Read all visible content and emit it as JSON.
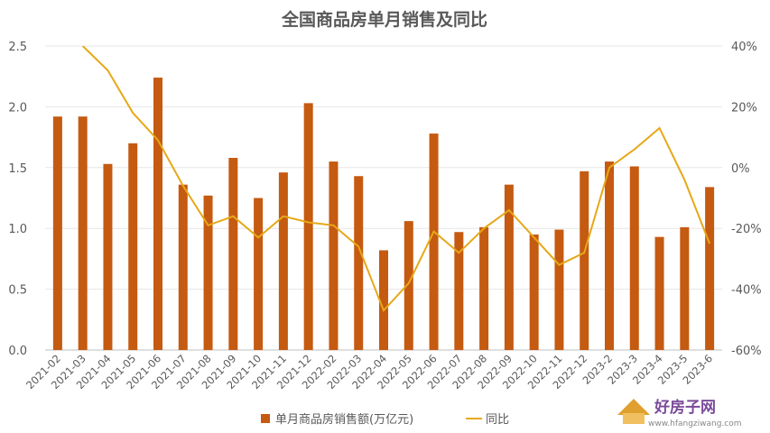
{
  "chart_data": {
    "type": "bar+line",
    "title": "全国商品房单月销售及同比",
    "categories": [
      "2021-02",
      "2021-03",
      "2021-04",
      "2021-05",
      "2021-06",
      "2021-07",
      "2021-08",
      "2021-09",
      "2021-10",
      "2021-11",
      "2021-12",
      "2022-02",
      "2022-03",
      "2022-04",
      "2022-05",
      "2022-06",
      "2022-07",
      "2022-08",
      "2022-09",
      "2022-10",
      "2022-11",
      "2022-12",
      "2023-2",
      "2023-3",
      "2023-4",
      "2023-5",
      "2023-6"
    ],
    "series": [
      {
        "name": "单月商品房销售额(万亿元)",
        "type": "bar",
        "axis": "left",
        "color": "#c55a11",
        "values": [
          1.92,
          1.92,
          1.53,
          1.7,
          2.24,
          1.36,
          1.27,
          1.58,
          1.25,
          1.46,
          2.03,
          1.55,
          1.43,
          0.82,
          1.06,
          1.78,
          0.97,
          1.01,
          1.36,
          0.95,
          0.99,
          1.47,
          1.55,
          1.51,
          0.93,
          1.01,
          1.34
        ]
      },
      {
        "name": "同比",
        "type": "line",
        "axis": "right",
        "color": "#e6a817",
        "values": [
          null,
          40,
          32,
          18,
          9,
          -6,
          -19,
          -16,
          -23,
          -16,
          -18,
          -19,
          -26,
          -47,
          -38,
          -21,
          -28,
          -20,
          -14,
          -23,
          -32,
          -28,
          0,
          6,
          13,
          -4,
          -25
        ]
      }
    ],
    "ylim_left": [
      0,
      2.5
    ],
    "yticks_left": [
      "0.0",
      "0.5",
      "1.0",
      "1.5",
      "2.0",
      "2.5"
    ],
    "ylim_right": [
      -60,
      40
    ],
    "yticks_right": [
      "-60%",
      "-40%",
      "-20%",
      "0%",
      "20%",
      "40%"
    ],
    "legend_position": "bottom",
    "grid": "horizontal"
  },
  "watermark": {
    "brand": "好房子网",
    "url": "www.hfangziwang.com"
  }
}
